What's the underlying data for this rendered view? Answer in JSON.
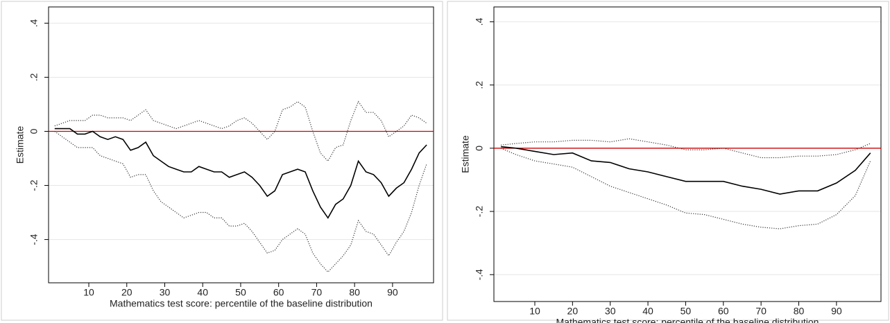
{
  "chart_data": [
    {
      "type": "line",
      "ylabel": "Estimate",
      "xlabel": "Mathematics test score: percentile of the baseline distribution",
      "x": [
        1,
        3,
        5,
        7,
        9,
        11,
        13,
        15,
        17,
        19,
        21,
        23,
        25,
        27,
        29,
        31,
        33,
        35,
        37,
        39,
        41,
        43,
        45,
        47,
        49,
        51,
        53,
        55,
        57,
        59,
        61,
        63,
        65,
        67,
        69,
        71,
        73,
        75,
        77,
        79,
        81,
        83,
        85,
        87,
        89,
        91,
        93,
        95,
        97,
        99
      ],
      "series": [
        {
          "color": "#000000",
          "style": "solid",
          "values": [
            0.01,
            0.01,
            0.01,
            -0.01,
            -0.01,
            0.0,
            -0.02,
            -0.03,
            -0.02,
            -0.03,
            -0.07,
            -0.06,
            -0.04,
            -0.09,
            -0.11,
            -0.13,
            -0.14,
            -0.15,
            -0.15,
            -0.13,
            -0.14,
            -0.15,
            -0.15,
            -0.17,
            -0.16,
            -0.15,
            -0.17,
            -0.2,
            -0.24,
            -0.22,
            -0.16,
            -0.15,
            -0.14,
            -0.15,
            -0.22,
            -0.28,
            -0.32,
            -0.27,
            -0.25,
            -0.2,
            -0.11,
            -0.15,
            -0.16,
            -0.19,
            -0.24,
            -0.21,
            -0.19,
            -0.14,
            -0.08,
            -0.05
          ]
        },
        {
          "color": "#333333",
          "style": "dotted",
          "values": [
            0.02,
            0.03,
            0.04,
            0.04,
            0.04,
            0.06,
            0.06,
            0.05,
            0.05,
            0.05,
            0.04,
            0.06,
            0.08,
            0.04,
            0.03,
            0.02,
            0.01,
            0.02,
            0.03,
            0.04,
            0.03,
            0.02,
            0.01,
            0.02,
            0.04,
            0.05,
            0.03,
            0.0,
            -0.03,
            0.0,
            0.08,
            0.09,
            0.11,
            0.09,
            0.0,
            -0.08,
            -0.11,
            -0.06,
            -0.05,
            0.04,
            0.11,
            0.07,
            0.07,
            0.04,
            -0.02,
            0.0,
            0.02,
            0.06,
            0.05,
            0.03
          ]
        },
        {
          "color": "#333333",
          "style": "dotted",
          "values": [
            0.0,
            -0.02,
            -0.04,
            -0.06,
            -0.06,
            -0.06,
            -0.09,
            -0.1,
            -0.11,
            -0.12,
            -0.17,
            -0.16,
            -0.16,
            -0.22,
            -0.26,
            -0.28,
            -0.3,
            -0.32,
            -0.31,
            -0.3,
            -0.3,
            -0.32,
            -0.32,
            -0.35,
            -0.35,
            -0.34,
            -0.37,
            -0.41,
            -0.45,
            -0.44,
            -0.4,
            -0.38,
            -0.36,
            -0.38,
            -0.45,
            -0.49,
            -0.52,
            -0.49,
            -0.46,
            -0.42,
            -0.33,
            -0.37,
            -0.38,
            -0.42,
            -0.46,
            -0.41,
            -0.37,
            -0.3,
            -0.2,
            -0.12
          ]
        }
      ],
      "reference_line": {
        "value": 0,
        "color": "#cc0000"
      },
      "xlim": [
        -0.6,
        100.8
      ],
      "ylim": [
        -0.56,
        0.46
      ],
      "xticks": [
        10,
        20,
        30,
        40,
        50,
        60,
        70,
        80,
        90
      ],
      "yticks": [
        {
          "value": -0.4,
          "label": "-.4"
        },
        {
          "value": -0.2,
          "label": "-.2"
        },
        0,
        {
          "value": 0.2,
          "label": ".2"
        },
        {
          "value": 0.4,
          "label": ".4"
        }
      ],
      "grid": true
    },
    {
      "type": "line",
      "ylabel": "Estimate",
      "xlabel": "Mathematics test score: percentile of the baseline distribution",
      "x": [
        1,
        5,
        10,
        15,
        20,
        25,
        30,
        35,
        40,
        45,
        50,
        55,
        60,
        65,
        70,
        75,
        80,
        85,
        90,
        95,
        99
      ],
      "series": [
        {
          "color": "#000000",
          "style": "solid",
          "values": [
            0.005,
            0.0,
            -0.01,
            -0.02,
            -0.015,
            -0.04,
            -0.045,
            -0.065,
            -0.075,
            -0.09,
            -0.105,
            -0.105,
            -0.105,
            -0.12,
            -0.13,
            -0.145,
            -0.135,
            -0.135,
            -0.11,
            -0.07,
            -0.015
          ]
        },
        {
          "color": "#333333",
          "style": "dotted",
          "values": [
            0.01,
            0.015,
            0.02,
            0.02,
            0.025,
            0.025,
            0.02,
            0.03,
            0.02,
            0.01,
            -0.005,
            -0.005,
            0.0,
            -0.015,
            -0.03,
            -0.03,
            -0.025,
            -0.025,
            -0.02,
            -0.005,
            0.015
          ]
        },
        {
          "color": "#333333",
          "style": "dotted",
          "values": [
            0.0,
            -0.02,
            -0.04,
            -0.05,
            -0.06,
            -0.09,
            -0.12,
            -0.14,
            -0.16,
            -0.18,
            -0.205,
            -0.21,
            -0.225,
            -0.24,
            -0.25,
            -0.255,
            -0.245,
            -0.24,
            -0.21,
            -0.15,
            -0.04
          ]
        }
      ],
      "reference_line": {
        "value": 0,
        "color": "#cc0000"
      },
      "xlim": [
        -0.85,
        101.8
      ],
      "ylim": [
        -0.485,
        0.447
      ],
      "xticks": [
        10,
        20,
        30,
        40,
        50,
        60,
        70,
        80,
        90
      ],
      "yticks": [
        {
          "value": -0.4,
          "label": "-.4"
        },
        {
          "value": -0.2,
          "label": "-.2"
        },
        0,
        {
          "value": 0.2,
          "label": ".2"
        },
        {
          "value": 0.4,
          "label": ".4"
        }
      ],
      "grid": true
    }
  ]
}
